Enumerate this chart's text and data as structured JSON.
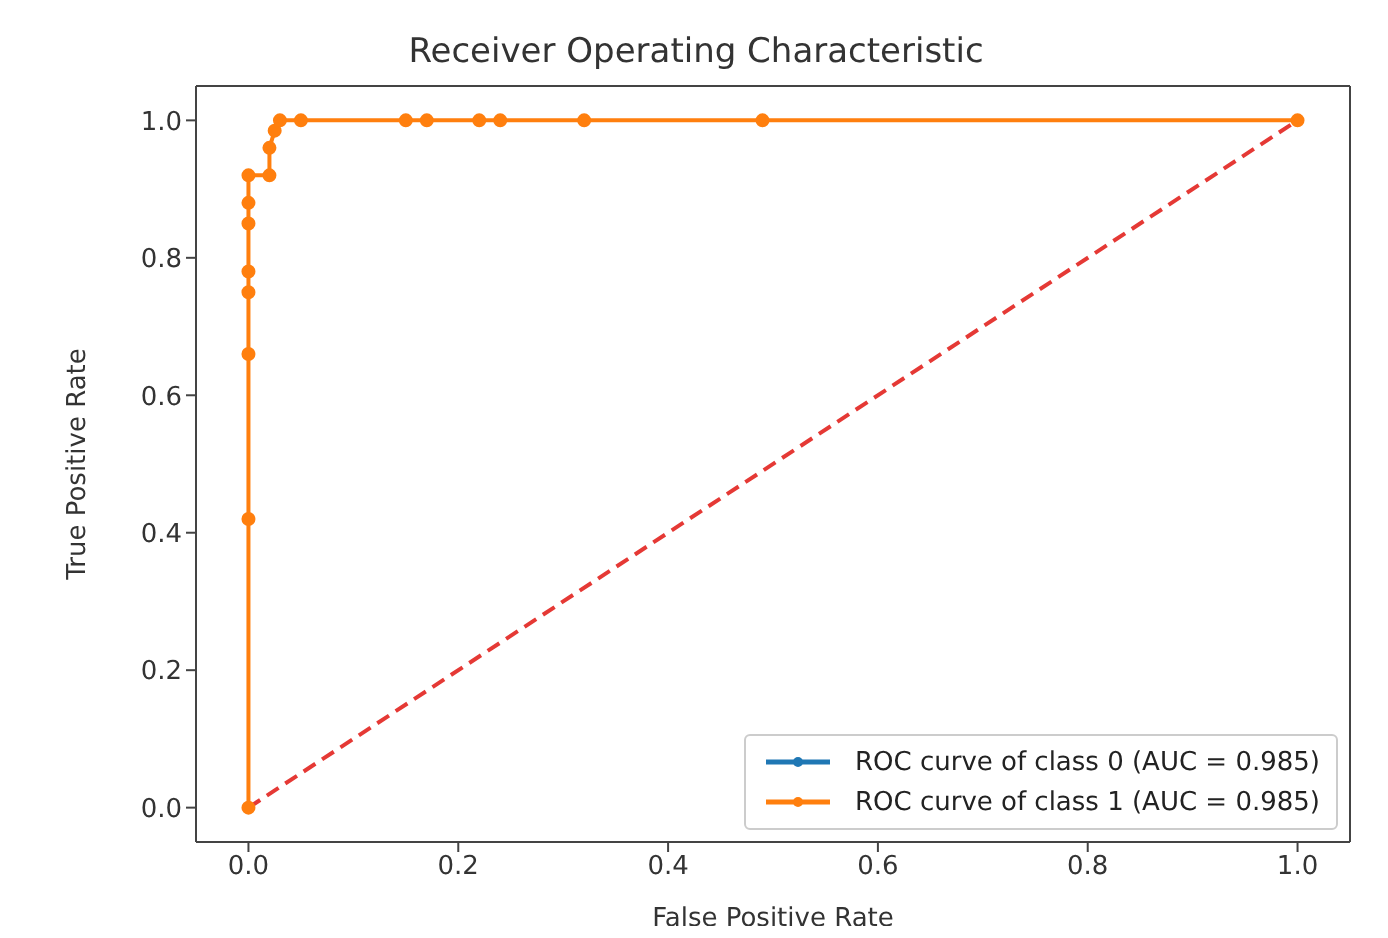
{
  "chart_data": {
    "type": "line",
    "title": "Receiver Operating Characteristic",
    "xlabel": "False Positive Rate",
    "ylabel": "True Positive Rate",
    "xlim": [
      -0.05,
      1.05
    ],
    "ylim": [
      -0.05,
      1.05
    ],
    "xticks": [
      {
        "value": 0,
        "label": "0.0"
      },
      {
        "value": 0.2,
        "label": "0.2"
      },
      {
        "value": 0.4,
        "label": "0.4"
      },
      {
        "value": 0.6,
        "label": "0.6"
      },
      {
        "value": 0.8,
        "label": "0.8"
      },
      {
        "value": 1,
        "label": "1.0"
      }
    ],
    "yticks": [
      {
        "value": 0,
        "label": "0.0"
      },
      {
        "value": 0.2,
        "label": "0.2"
      },
      {
        "value": 0.4,
        "label": "0.4"
      },
      {
        "value": 0.6,
        "label": "0.6"
      },
      {
        "value": 0.8,
        "label": "0.8"
      },
      {
        "value": 1,
        "label": "1.0"
      }
    ],
    "legend": "bottom right",
    "marker": "circle",
    "line_style": "solid",
    "series": [
      {
        "name": "ROC curve of class 0 (AUC = 0.985)",
        "color": "#1f77b4"
      },
      {
        "name": "ROC curve of class 1 (AUC = 0.985)",
        "color": "#ff7f0e",
        "x": [
          0,
          0,
          0,
          0,
          0,
          0,
          0,
          0,
          0.02,
          0.02,
          0.025,
          0.03,
          0.05,
          0.15,
          0.17,
          0.22,
          0.24,
          0.32,
          0.49,
          1
        ],
        "values": [
          0,
          0.42,
          0.66,
          0.75,
          0.78,
          0.85,
          0.88,
          0.92,
          0.92,
          0.96,
          0.985,
          1,
          1,
          1,
          1,
          1,
          1,
          1,
          1,
          1
        ]
      },
      {
        "type": "line",
        "color": "#e53935",
        "line_style": "dashed",
        "marker": "none",
        "x": [
          0,
          1
        ],
        "values": [
          0,
          1
        ]
      }
    ]
  }
}
